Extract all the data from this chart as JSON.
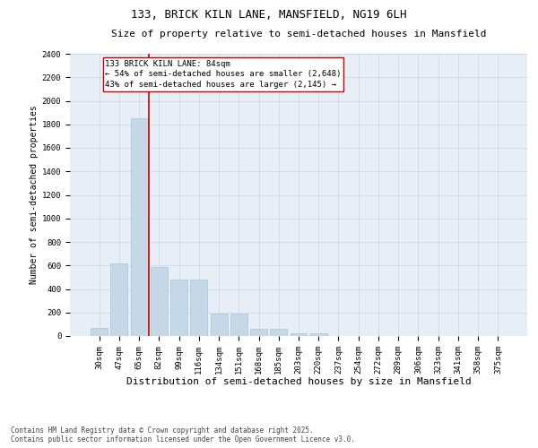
{
  "title": "133, BRICK KILN LANE, MANSFIELD, NG19 6LH",
  "subtitle": "Size of property relative to semi-detached houses in Mansfield",
  "xlabel": "Distribution of semi-detached houses by size in Mansfield",
  "ylabel": "Number of semi-detached properties",
  "categories": [
    "30sqm",
    "47sqm",
    "65sqm",
    "82sqm",
    "99sqm",
    "116sqm",
    "134sqm",
    "151sqm",
    "168sqm",
    "185sqm",
    "203sqm",
    "220sqm",
    "237sqm",
    "254sqm",
    "272sqm",
    "289sqm",
    "306sqm",
    "323sqm",
    "341sqm",
    "358sqm",
    "375sqm"
  ],
  "values": [
    70,
    620,
    1850,
    590,
    480,
    480,
    190,
    190,
    60,
    60,
    25,
    20,
    0,
    0,
    0,
    0,
    0,
    0,
    0,
    0,
    0
  ],
  "bar_color": "#c5d8e8",
  "bar_edge_color": "#a8c4d8",
  "vline_x_index": 3,
  "vline_color": "#cc0000",
  "annotation_text": "133 BRICK KILN LANE: 84sqm\n← 54% of semi-detached houses are smaller (2,648)\n43% of semi-detached houses are larger (2,145) →",
  "annotation_box_color": "#ffffff",
  "annotation_box_edge": "#cc0000",
  "ylim": [
    0,
    2400
  ],
  "yticks": [
    0,
    200,
    400,
    600,
    800,
    1000,
    1200,
    1400,
    1600,
    1800,
    2000,
    2200,
    2400
  ],
  "grid_color": "#ccd5e0",
  "bg_color": "#e8eef5",
  "footer_line1": "Contains HM Land Registry data © Crown copyright and database right 2025.",
  "footer_line2": "Contains public sector information licensed under the Open Government Licence v3.0.",
  "title_fontsize": 9,
  "subtitle_fontsize": 8,
  "xlabel_fontsize": 8,
  "ylabel_fontsize": 7,
  "tick_fontsize": 6.5,
  "annotation_fontsize": 6.5,
  "footer_fontsize": 5.5
}
